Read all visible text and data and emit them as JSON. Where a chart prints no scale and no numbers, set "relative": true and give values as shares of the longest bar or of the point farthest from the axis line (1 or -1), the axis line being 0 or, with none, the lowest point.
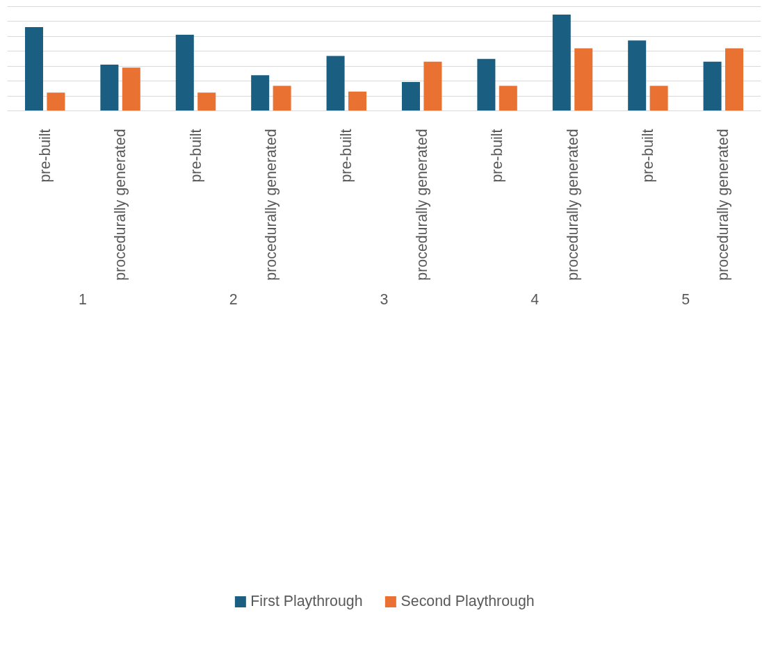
{
  "chart_data": {
    "type": "bar",
    "relative": true,
    "grid": "y",
    "legend": "bottom",
    "categories": [
      "pre-built",
      "procedurally generated",
      "pre-built",
      "procedurally generated",
      "pre-built",
      "procedurally generated",
      "pre-built",
      "procedurally generated",
      "pre-built",
      "procedurally generated"
    ],
    "annotations": [
      "1",
      "2",
      "3",
      "4",
      "5"
    ],
    "series": [
      {
        "name": "First Playthrough",
        "color": "#1a5f82",
        "values": [
          0.87,
          0.48,
          0.79,
          0.37,
          0.57,
          0.3,
          0.54,
          1.0,
          0.73,
          0.51
        ]
      },
      {
        "name": "Second Playthrough",
        "color": "#e97132",
        "values": [
          0.19,
          0.45,
          0.19,
          0.26,
          0.2,
          0.51,
          0.26,
          0.65,
          0.26,
          0.65
        ]
      }
    ]
  }
}
